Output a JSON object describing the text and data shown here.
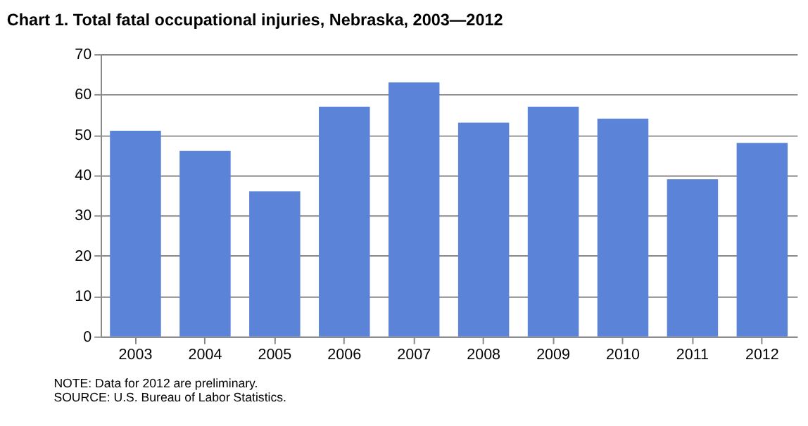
{
  "chart_data": {
    "type": "bar",
    "title": "Chart 1. Total fatal occupational injuries, Nebraska, 2003—2012",
    "categories": [
      "2003",
      "2004",
      "2005",
      "2006",
      "2007",
      "2008",
      "2009",
      "2010",
      "2011",
      "2012"
    ],
    "values": [
      51,
      46,
      36,
      57,
      63,
      53,
      57,
      54,
      39,
      48
    ],
    "color": "#5b84d8",
    "ylim": [
      0,
      70
    ],
    "yticks": [
      0,
      10,
      20,
      30,
      40,
      50,
      60,
      70
    ],
    "grid": "y",
    "annotations": [
      "NOTE: Data for 2012 are preliminary.",
      "SOURCE: U.S. Bureau of Labor Statistics."
    ]
  }
}
